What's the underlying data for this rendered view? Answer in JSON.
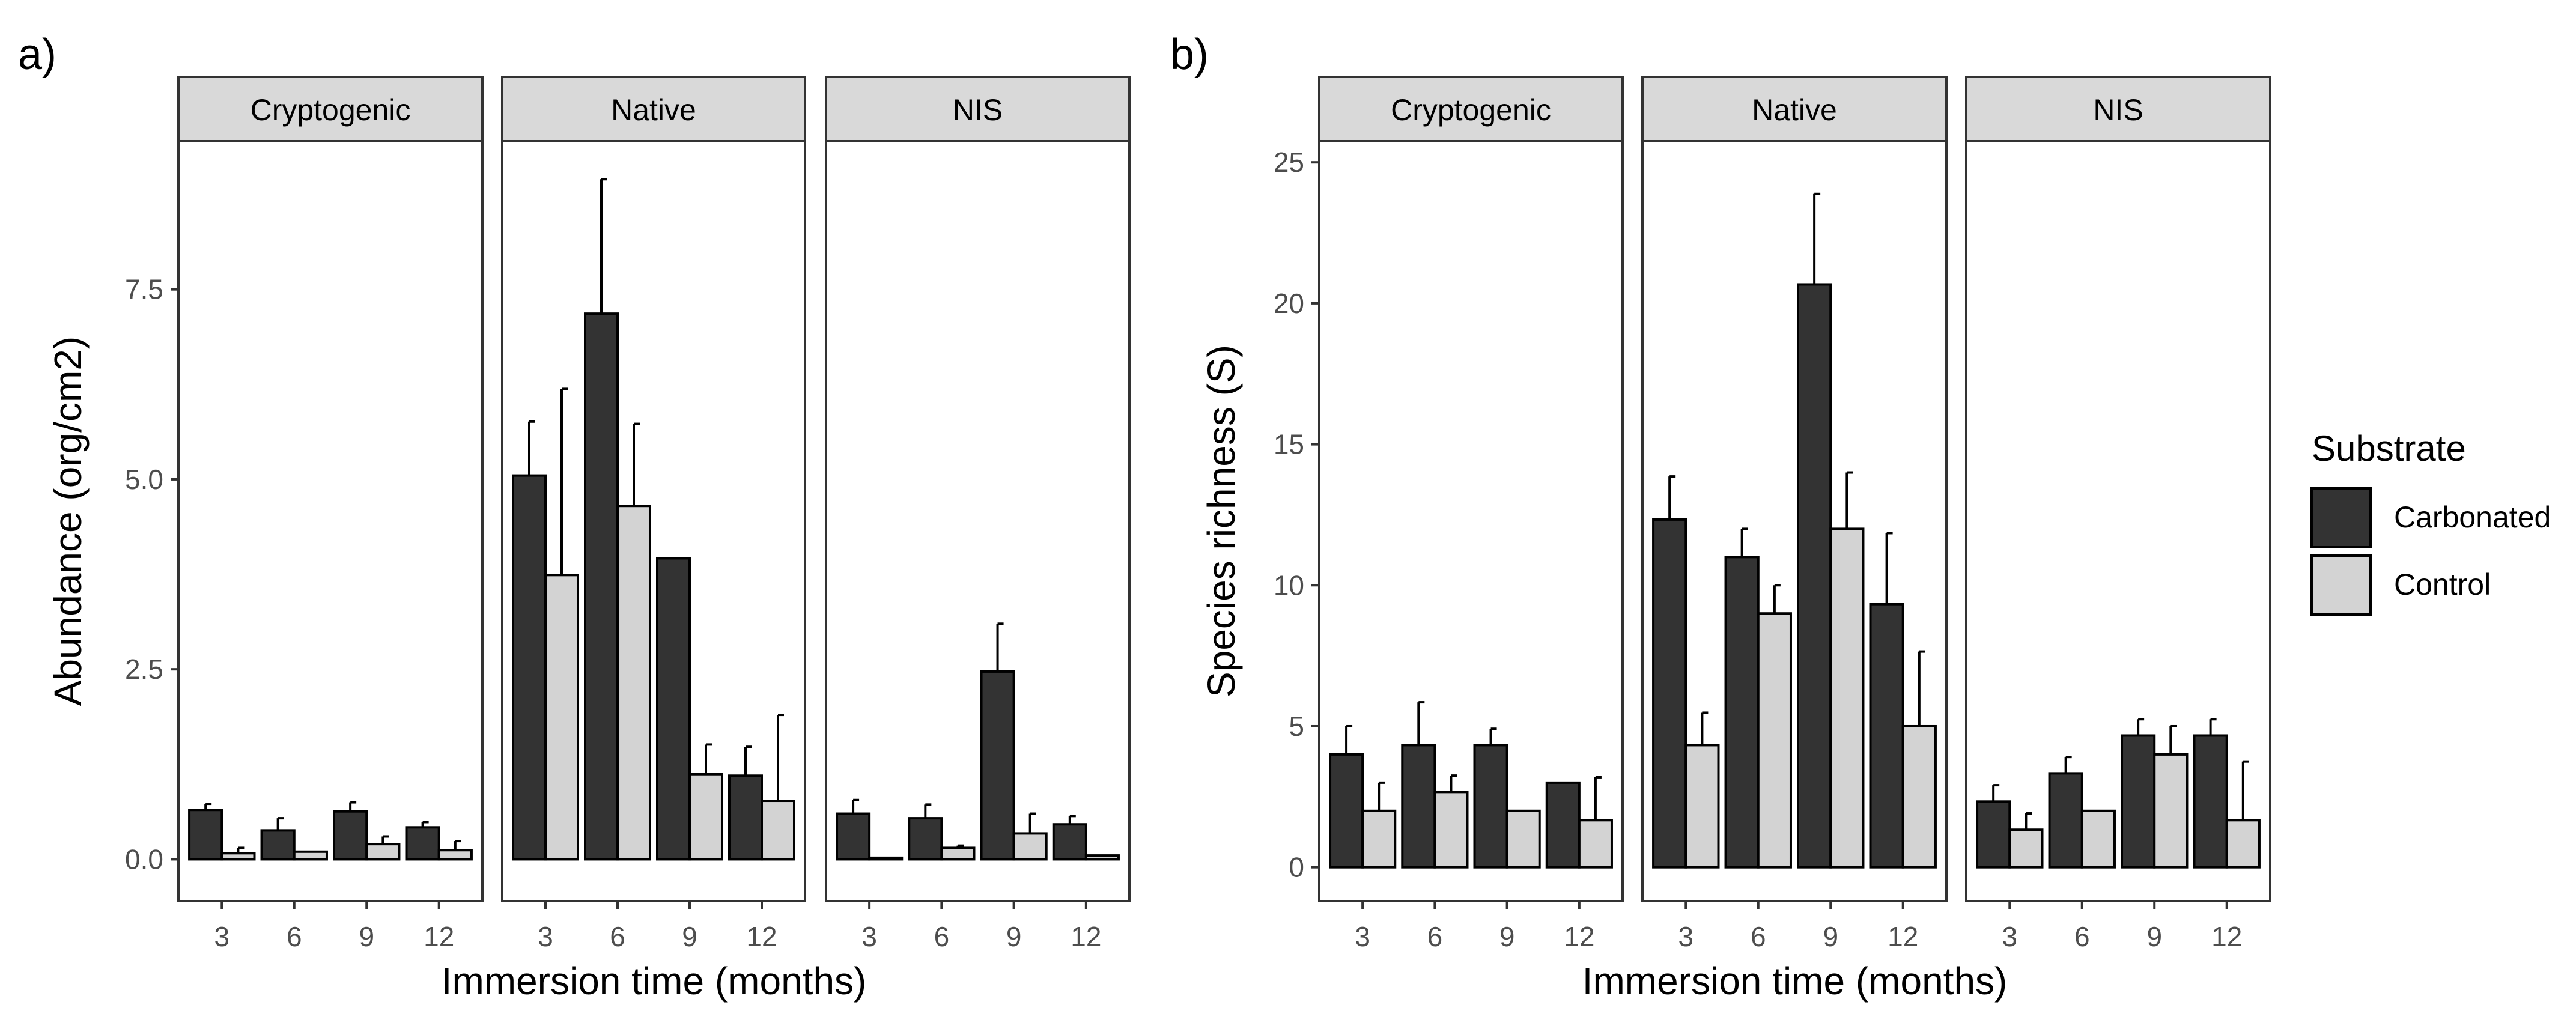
{
  "colors": {
    "carbonated": "#333333",
    "control": "#d3d3d3",
    "strip": "#d9d9d9",
    "frame": "#333333",
    "tick_text": "#4d4d4d",
    "error_bar": "#000000"
  },
  "legend": {
    "title": "Substrate",
    "items": [
      "Carbonated",
      "Control"
    ]
  },
  "chart_data": [
    {
      "type": "bar",
      "panel_tag": "a)",
      "xlabel": "Immersion time (months)",
      "ylabel": "Abundance (org/cm2)",
      "ylim": [
        -0.55,
        9.45
      ],
      "yticks": [
        0.0,
        2.5,
        5.0,
        7.5
      ],
      "ytick_labels": [
        "0.0",
        "2.5",
        "5.0",
        "7.5"
      ],
      "categories": [
        "3",
        "6",
        "9",
        "12"
      ],
      "facets": [
        {
          "name": "Cryptogenic",
          "series": [
            {
              "name": "Carbonated",
              "values": [
                0.65,
                0.38,
                0.63,
                0.42
              ],
              "errors": [
                0.08,
                0.16,
                0.12,
                0.07
              ]
            },
            {
              "name": "Control",
              "values": [
                0.08,
                0.1,
                0.2,
                0.12
              ],
              "errors": [
                0.07,
                0.0,
                0.1,
                0.12
              ]
            }
          ]
        },
        {
          "name": "Native",
          "series": [
            {
              "name": "Carbonated",
              "values": [
                5.05,
                7.18,
                3.96,
                1.1
              ],
              "errors": [
                0.71,
                1.77,
                0.0,
                0.38
              ]
            },
            {
              "name": "Control",
              "values": [
                3.74,
                4.65,
                1.12,
                0.77
              ],
              "errors": [
                2.45,
                1.08,
                0.39,
                1.13
              ]
            }
          ]
        },
        {
          "name": "NIS",
          "series": [
            {
              "name": "Carbonated",
              "values": [
                0.6,
                0.54,
                2.47,
                0.46
              ],
              "errors": [
                0.18,
                0.18,
                0.63,
                0.11
              ]
            },
            {
              "name": "Control",
              "values": [
                0.02,
                0.15,
                0.34,
                0.05
              ],
              "errors": [
                0.0,
                0.03,
                0.26,
                0.0
              ]
            }
          ]
        }
      ]
    },
    {
      "type": "bar",
      "panel_tag": "b)",
      "xlabel": "Immersion time (months)",
      "ylabel": "Species richness (S)",
      "ylim": [
        -1.2,
        25.75
      ],
      "yticks": [
        0,
        5,
        10,
        15,
        20,
        25
      ],
      "ytick_labels": [
        "0",
        "5",
        "10",
        "15",
        "20",
        "25"
      ],
      "categories": [
        "3",
        "6",
        "9",
        "12"
      ],
      "facets": [
        {
          "name": "Cryptogenic",
          "series": [
            {
              "name": "Carbonated",
              "values": [
                4.0,
                4.33,
                4.33,
                3.0
              ],
              "errors": [
                1.0,
                1.52,
                0.58,
                0.0
              ]
            },
            {
              "name": "Control",
              "values": [
                2.0,
                2.67,
                2.0,
                1.67
              ],
              "errors": [
                1.0,
                0.58,
                0.0,
                1.52
              ]
            }
          ]
        },
        {
          "name": "Native",
          "series": [
            {
              "name": "Carbonated",
              "values": [
                12.33,
                11.0,
                20.67,
                9.33
              ],
              "errors": [
                1.53,
                1.0,
                3.21,
                2.52
              ]
            },
            {
              "name": "Control",
              "values": [
                4.33,
                9.0,
                12.0,
                5.0
              ],
              "errors": [
                1.15,
                1.0,
                2.0,
                2.65
              ]
            }
          ]
        },
        {
          "name": "NIS",
          "series": [
            {
              "name": "Carbonated",
              "values": [
                2.33,
                3.33,
                4.67,
                4.67
              ],
              "errors": [
                0.58,
                0.58,
                0.58,
                0.58
              ]
            },
            {
              "name": "Control",
              "values": [
                1.33,
                2.0,
                4.0,
                1.67
              ],
              "errors": [
                0.58,
                0.0,
                1.0,
                2.08
              ]
            }
          ]
        }
      ]
    }
  ]
}
